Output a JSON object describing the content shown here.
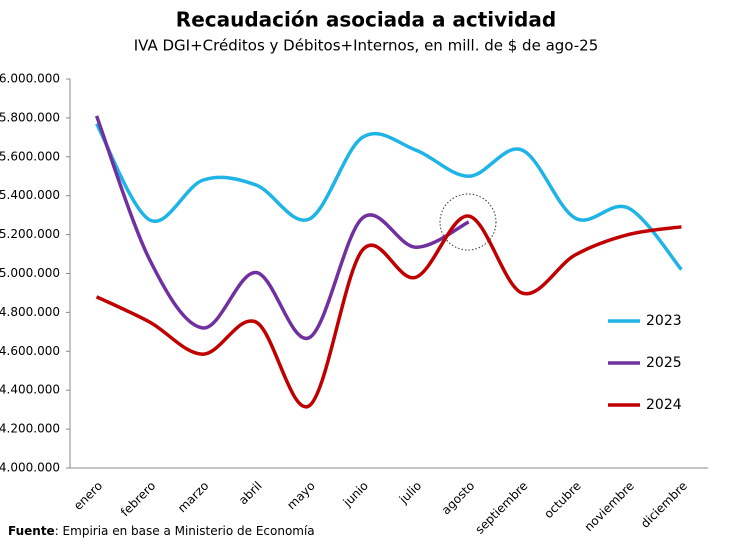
{
  "chart_data": {
    "type": "line",
    "title": "Recaudación asociada a actividad",
    "subtitle": "IVA DGI+Créditos y Débitos+Internos, en mill. de $ de ago-25",
    "source_label": "Fuente",
    "source": ": Empiria en base a Ministerio de Economía",
    "categories": [
      "enero",
      "febrero",
      "marzo",
      "abril",
      "mayo",
      "junio",
      "julio",
      "agosto",
      "septiembre",
      "octubre",
      "noviembre",
      "diciembre"
    ],
    "series": [
      {
        "name": "2023",
        "color": "#1fb4e6",
        "values": [
          5770000,
          5275000,
          5480000,
          5455000,
          5280000,
          5700000,
          5635000,
          5500000,
          5635000,
          5285000,
          5337000,
          5020000
        ]
      },
      {
        "name": "2025",
        "color": "#7030a0",
        "values": [
          5810000,
          5070000,
          4720000,
          5005000,
          4670000,
          5285000,
          5135000,
          5265000,
          null,
          null,
          null,
          null
        ]
      },
      {
        "name": "2024",
        "color": "#c00000",
        "values": [
          4880000,
          4750000,
          4585000,
          4750000,
          4320000,
          5120000,
          4980000,
          5295000,
          4900000,
          5095000,
          5200000,
          5240000
        ]
      }
    ],
    "ylim": [
      4000000,
      6000000
    ],
    "yticks": [
      {
        "value": 4000000,
        "label": "4.000.000"
      },
      {
        "value": 4200000,
        "label": "4.200.000"
      },
      {
        "value": 4400000,
        "label": "4.400.000"
      },
      {
        "value": 4600000,
        "label": "4.600.000"
      },
      {
        "value": 4800000,
        "label": "4.800.000"
      },
      {
        "value": 5000000,
        "label": "5.000.000"
      },
      {
        "value": 5200000,
        "label": "5.200.000"
      },
      {
        "value": 5400000,
        "label": "5.400.000"
      },
      {
        "value": 5600000,
        "label": "5.600.000"
      },
      {
        "value": 5800000,
        "label": "5.800.000"
      },
      {
        "value": 6000000,
        "label": "6.000.000"
      }
    ],
    "grid": false
  }
}
